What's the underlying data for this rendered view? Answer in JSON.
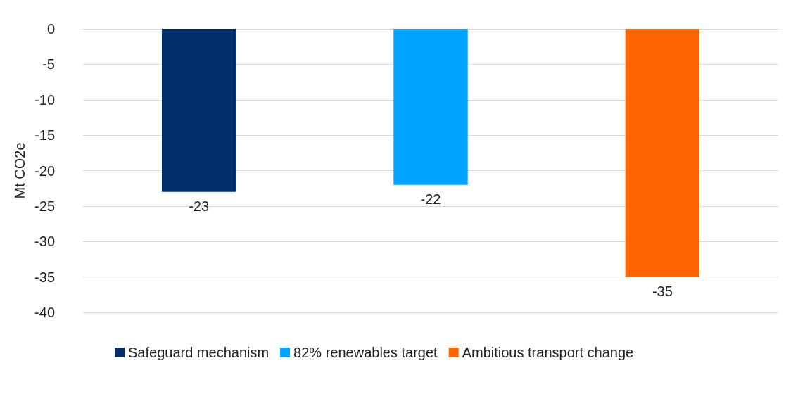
{
  "chart_data": {
    "type": "bar",
    "ylabel": "Mt CO2e",
    "categories": [
      null,
      null,
      null
    ],
    "series": [
      {
        "name": "Safeguard mechanism",
        "color": "#002f6c",
        "values": [
          -23,
          null,
          null
        ]
      },
      {
        "name": "82% renewables target",
        "color": "#00a3ff",
        "values": [
          null,
          -22,
          null
        ]
      },
      {
        "name": "Ambitious transport change",
        "color": "#ff6600",
        "values": [
          null,
          null,
          -35
        ]
      }
    ],
    "ylim": [
      -40,
      0
    ],
    "yticks": [
      0,
      -5,
      -10,
      -15,
      -20,
      -25,
      -30,
      -35,
      -40
    ],
    "grid": "y",
    "legend": "bottom",
    "data_labels": true
  }
}
